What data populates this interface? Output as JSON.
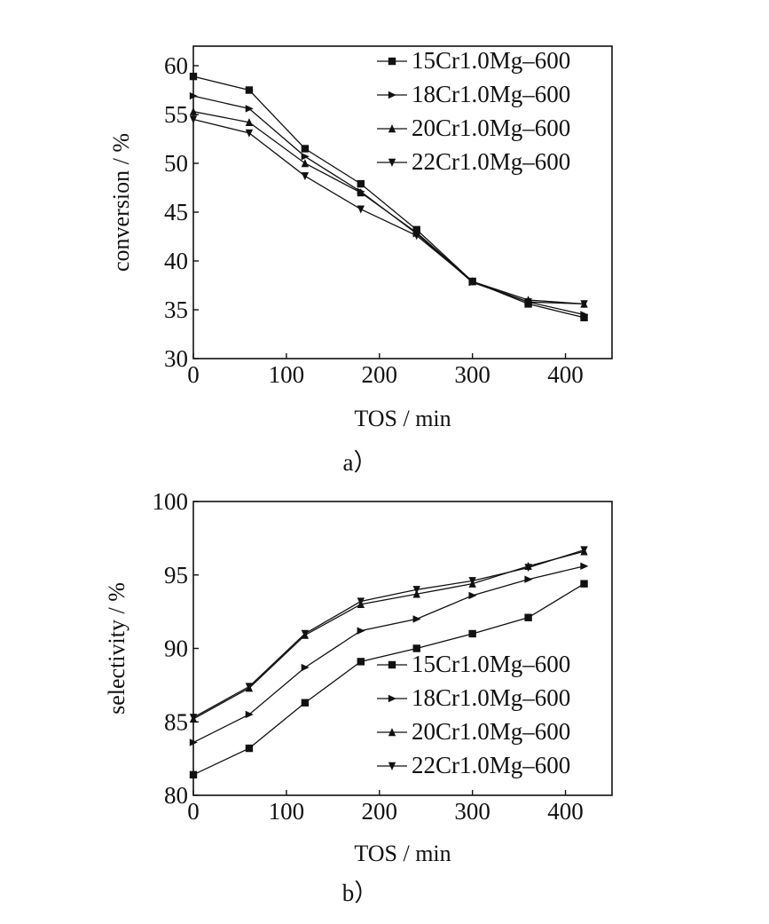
{
  "chart_data": [
    {
      "type": "line",
      "panel_label": "a）",
      "xlabel": "TOS / min",
      "ylabel": "conversion / %",
      "xlim": [
        0,
        450
      ],
      "ylim": [
        30,
        62
      ],
      "x_ticks": [
        "0",
        "100",
        "200",
        "300",
        "400"
      ],
      "y_ticks": [
        "30",
        "35",
        "40",
        "45",
        "50",
        "55",
        "60"
      ],
      "legend_position": "top-right",
      "grid": false,
      "x": [
        0,
        60,
        120,
        180,
        240,
        300,
        360,
        420
      ],
      "series": [
        {
          "name": "15Cr1.0Mg–600",
          "marker": "square",
          "values": [
            58.9,
            57.5,
            51.5,
            47.9,
            43.2,
            37.9,
            35.6,
            34.2
          ]
        },
        {
          "name": "18Cr1.0Mg–600",
          "marker": "triangle-right",
          "values": [
            56.9,
            55.6,
            50.7,
            47.1,
            42.8,
            37.8,
            35.8,
            34.5
          ]
        },
        {
          "name": "20Cr1.0Mg–600",
          "marker": "triangle-up",
          "values": [
            55.3,
            54.2,
            50.0,
            47.0,
            42.9,
            37.9,
            36.0,
            35.6
          ]
        },
        {
          "name": "22Cr1.0Mg–600",
          "marker": "triangle-down",
          "values": [
            54.5,
            53.1,
            48.7,
            45.3,
            42.6,
            37.9,
            35.8,
            35.6
          ]
        }
      ]
    },
    {
      "type": "line",
      "panel_label": "b）",
      "xlabel": "TOS / min",
      "ylabel": "selectivity / %",
      "xlim": [
        0,
        450
      ],
      "ylim": [
        80,
        100
      ],
      "x_ticks": [
        "0",
        "100",
        "200",
        "300",
        "400"
      ],
      "y_ticks": [
        "80",
        "85",
        "90",
        "95",
        "100"
      ],
      "legend_position": "bottom-right",
      "grid": false,
      "x": [
        0,
        60,
        120,
        180,
        240,
        300,
        360,
        420
      ],
      "series": [
        {
          "name": "15Cr1.0Mg–600",
          "marker": "square",
          "values": [
            81.4,
            83.2,
            86.3,
            89.1,
            90.0,
            91.0,
            92.1,
            94.4
          ]
        },
        {
          "name": "18Cr1.0Mg–600",
          "marker": "triangle-right",
          "values": [
            83.6,
            85.5,
            88.7,
            91.2,
            92.0,
            93.6,
            94.7,
            95.6
          ]
        },
        {
          "name": "20Cr1.0Mg–600",
          "marker": "triangle-up",
          "values": [
            85.2,
            87.3,
            90.9,
            93.0,
            93.7,
            94.4,
            95.6,
            96.6
          ]
        },
        {
          "name": "22Cr1.0Mg–600",
          "marker": "triangle-down",
          "values": [
            85.3,
            87.4,
            91.0,
            93.2,
            94.0,
            94.6,
            95.5,
            96.7
          ]
        }
      ]
    }
  ]
}
